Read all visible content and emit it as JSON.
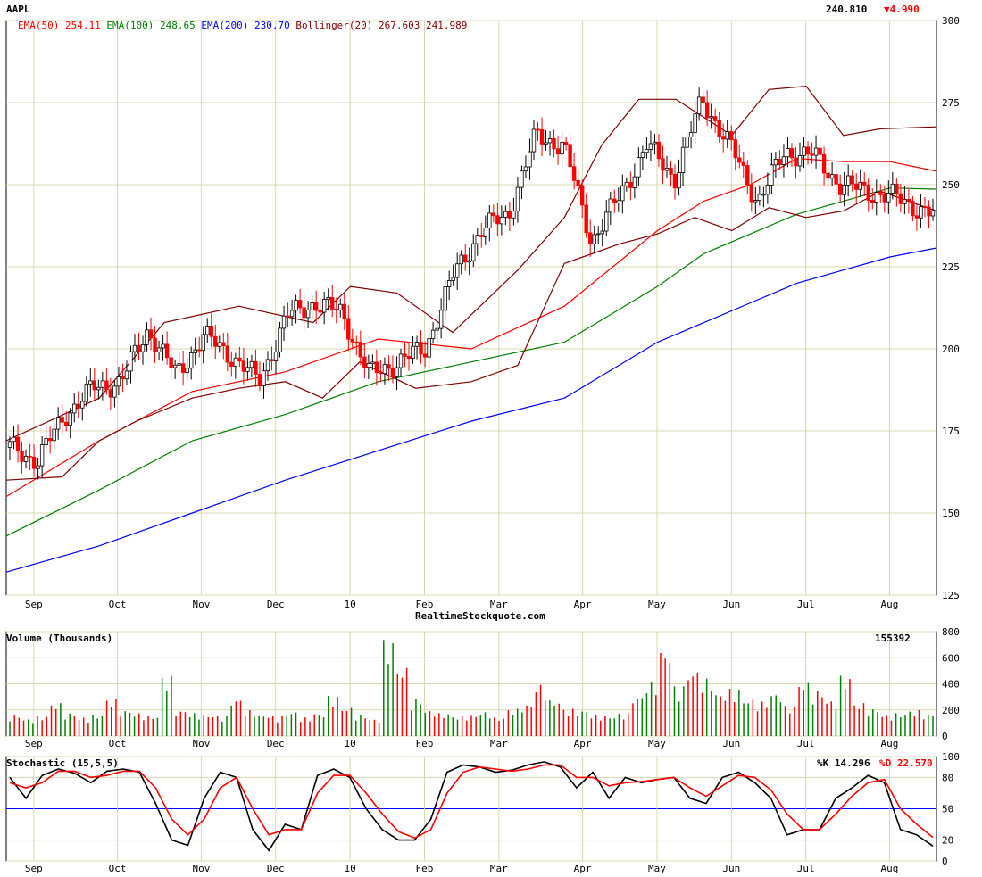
{
  "header": {
    "symbol": "AAPL",
    "last_price": "240.810",
    "change": "▼4.990",
    "change_color": "#ff0000"
  },
  "indicators": [
    {
      "label": "EMA(50)",
      "value": "254.11",
      "color": "#ff0000"
    },
    {
      "label": "EMA(100)",
      "value": "248.65",
      "color": "#008000"
    },
    {
      "label": "EMA(200)",
      "value": "230.70",
      "color": "#0000ff"
    },
    {
      "label": "Bollinger(20)",
      "value": "267.603 241.989",
      "color": "#800000"
    }
  ],
  "watermark": "RealtimeStockquote.com",
  "colors": {
    "grid": "#d8d8b0",
    "up_candle": "#000000",
    "down_candle": "#ff0000",
    "volume_up": "#008000",
    "volume_down": "#ff0000",
    "stoch_k": "#000000",
    "stoch_d": "#ff0000",
    "stoch_mid": "#0000ff"
  },
  "chart_data": [
    {
      "type": "candlestick",
      "panel": "price",
      "x_labels": [
        "Sep",
        "Oct",
        "Nov",
        "Dec",
        "10",
        "Feb",
        "Mar",
        "Apr",
        "May",
        "Jun",
        "Jul",
        "Aug"
      ],
      "x_label_positions": [
        0.02,
        0.11,
        0.2,
        0.28,
        0.36,
        0.44,
        0.52,
        0.61,
        0.69,
        0.77,
        0.85,
        0.94
      ],
      "y_ticks": [
        125,
        150,
        175,
        200,
        225,
        250,
        275,
        300
      ],
      "ylim": [
        125,
        300
      ],
      "grid": true,
      "series": [
        {
          "name": "AAPL",
          "x": [
            0,
            0.03,
            0.06,
            0.09,
            0.12,
            0.15,
            0.18,
            0.21,
            0.24,
            0.27,
            0.3,
            0.33,
            0.36,
            0.39,
            0.42,
            0.45,
            0.48,
            0.51,
            0.54,
            0.57,
            0.6,
            0.63,
            0.66,
            0.69,
            0.72,
            0.75,
            0.78,
            0.81,
            0.84,
            0.87,
            0.9,
            0.93,
            0.96,
            1.0
          ],
          "values": [
            170,
            166,
            180,
            188,
            190,
            206,
            192,
            204,
            198,
            190,
            210,
            214,
            211,
            192,
            196,
            200,
            222,
            236,
            241,
            265,
            262,
            233,
            246,
            262,
            252,
            276,
            262,
            245,
            260,
            259,
            250,
            248,
            246,
            240.81
          ]
        },
        {
          "name": "EMA(50)",
          "x": [
            0,
            0.1,
            0.2,
            0.3,
            0.4,
            0.5,
            0.6,
            0.7,
            0.75,
            0.8,
            0.85,
            0.9,
            0.95,
            1.0
          ],
          "values": [
            155,
            172,
            187,
            193,
            203,
            200,
            213,
            236,
            245,
            250,
            258,
            257,
            257,
            254.11
          ]
        },
        {
          "name": "EMA(100)",
          "x": [
            0,
            0.1,
            0.2,
            0.3,
            0.4,
            0.5,
            0.6,
            0.7,
            0.75,
            0.8,
            0.85,
            0.9,
            0.95,
            1.0
          ],
          "values": [
            143,
            157,
            172,
            180,
            190,
            196,
            202,
            219,
            229,
            235,
            241,
            245,
            249,
            248.65
          ]
        },
        {
          "name": "EMA(200)",
          "x": [
            0,
            0.1,
            0.2,
            0.3,
            0.4,
            0.5,
            0.6,
            0.7,
            0.75,
            0.8,
            0.85,
            0.9,
            0.95,
            1.0
          ],
          "values": [
            132,
            140,
            150,
            160,
            169,
            178,
            185,
            202,
            208,
            214,
            220,
            224,
            228,
            230.7
          ]
        },
        {
          "name": "Bollinger upper",
          "x": [
            0,
            0.1,
            0.17,
            0.25,
            0.33,
            0.37,
            0.42,
            0.48,
            0.55,
            0.6,
            0.64,
            0.68,
            0.72,
            0.78,
            0.82,
            0.86,
            0.9,
            0.94,
            1.0
          ],
          "values": [
            172,
            185,
            208,
            213,
            208,
            219,
            217,
            205,
            224,
            240,
            262,
            276,
            276,
            265,
            279,
            280,
            265,
            267,
            267.6
          ]
        },
        {
          "name": "Bollinger lower",
          "x": [
            0,
            0.06,
            0.1,
            0.14,
            0.2,
            0.25,
            0.3,
            0.34,
            0.38,
            0.44,
            0.5,
            0.55,
            0.6,
            0.66,
            0.7,
            0.74,
            0.78,
            0.82,
            0.86,
            0.9,
            0.94,
            1.0
          ],
          "values": [
            160,
            161,
            172,
            178,
            185,
            188,
            190,
            185,
            196,
            188,
            190,
            195,
            226,
            232,
            235,
            240,
            236,
            243,
            240,
            242,
            248,
            241.989
          ]
        }
      ]
    },
    {
      "type": "bar",
      "panel": "volume",
      "title": "Volume (Thousands)",
      "last_value": "155392",
      "y_ticks": [
        0,
        200,
        400,
        600,
        800
      ],
      "ylim": [
        0,
        800
      ],
      "values": [
        150,
        120,
        140,
        230,
        160,
        130,
        150,
        260,
        180,
        160,
        140,
        420,
        180,
        160,
        150,
        140,
        260,
        180,
        150,
        140,
        170,
        130,
        160,
        280,
        200,
        150,
        120,
        670,
        480,
        260,
        180,
        160,
        140,
        150,
        170,
        130,
        190,
        220,
        360,
        250,
        190,
        180,
        150,
        140,
        160,
        280,
        380,
        600,
        350,
        460,
        400,
        300,
        330,
        260,
        240,
        300,
        210,
        380,
        320,
        250,
        420,
        230,
        190,
        150,
        160,
        180,
        155
      ]
    },
    {
      "type": "line",
      "panel": "stochastic",
      "title": "Stochastic (15,5,5)",
      "k_label": "%K 14.296",
      "d_label": "%D 22.570",
      "y_ticks": [
        0,
        20,
        50,
        80,
        100
      ],
      "ylim": [
        0,
        100
      ],
      "series": [
        {
          "name": "%K",
          "values": [
            80,
            60,
            82,
            88,
            84,
            75,
            86,
            88,
            85,
            55,
            20,
            15,
            60,
            85,
            80,
            30,
            10,
            35,
            30,
            82,
            88,
            80,
            50,
            30,
            20,
            20,
            40,
            85,
            92,
            90,
            85,
            87,
            92,
            95,
            90,
            70,
            85,
            60,
            80,
            75,
            78,
            80,
            60,
            55,
            80,
            85,
            75,
            60,
            25,
            30,
            30,
            60,
            70,
            82,
            75,
            30,
            25,
            14.3
          ]
        },
        {
          "name": "%D",
          "values": [
            75,
            70,
            75,
            86,
            86,
            80,
            82,
            86,
            86,
            70,
            40,
            25,
            40,
            70,
            80,
            50,
            25,
            30,
            30,
            65,
            82,
            82,
            65,
            45,
            28,
            22,
            30,
            65,
            85,
            90,
            88,
            86,
            88,
            92,
            92,
            80,
            80,
            72,
            75,
            76,
            78,
            80,
            70,
            62,
            72,
            82,
            80,
            68,
            45,
            30,
            30,
            45,
            62,
            75,
            78,
            50,
            35,
            22.57
          ]
        }
      ]
    }
  ]
}
